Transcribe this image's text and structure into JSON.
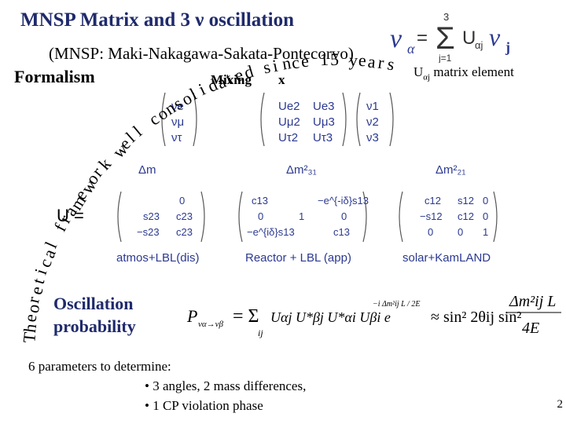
{
  "slide": {
    "title": "MNSP Matrix and 3  ν  oscillation",
    "subtitle": "(MNSP: Maki-Nakagawa-Sakata-Pontecorvo)",
    "formalism": "Formalism",
    "mixing_head": "Mixing",
    "mixing_tail": "x",
    "uaj_prefix": "U",
    "uaj_sub": "αj",
    "uaj_suffix": " matrix element",
    "eq_top": {
      "nu": "ν",
      "alpha": "α",
      "equals": "=",
      "upper": "3",
      "sum": "Σ",
      "lower": "j=1",
      "u": "U",
      "u_sub": "αj",
      "nu2": "ν",
      "j": "j"
    },
    "overlay": "Theoretical framework well consolidated since 15 years",
    "matrix_rows": [
      [
        "νe",
        "Ue2",
        "Ue3",
        "ν1"
      ],
      [
        "νμ",
        "Uμ2",
        "Uμ3",
        "ν2"
      ],
      [
        "ντ",
        "Uτ2",
        "Uτ3",
        "ν3"
      ]
    ],
    "delta_left": "Δm",
    "delta_mid": "Δm²₃₁",
    "delta_right": "Δm²₂₁",
    "u_eq": "U =",
    "m1": [
      [
        "s23",
        "c23"
      ],
      [
        "−s23",
        "c23"
      ]
    ],
    "m2": [
      [
        "c13",
        "",
        "−e^{-iδ}s13"
      ],
      [
        "0",
        "1",
        "0"
      ],
      [
        "−e^{iδ}s13",
        "",
        "c13"
      ]
    ],
    "m3": [
      [
        "c12",
        "s12",
        "0"
      ],
      [
        "−s12",
        "c12",
        "0"
      ],
      [
        "0",
        "0",
        "1"
      ]
    ],
    "m1_top": [
      "",
      "",
      "0"
    ],
    "label_left": "atmos+LBL(dis)",
    "label_mid": "Reactor + LBL (app)",
    "label_right": "solar+KamLAND",
    "osc_line1": "Oscillation",
    "osc_line2": "probability",
    "prob_lhs": "P",
    "prob_lhs_sub": "να→νβ",
    "prob_eq": "= Σ",
    "prob_ij": "ij",
    "prob_terms": "Uαj U*βj U*αi Uβi e",
    "prob_exp": "−i Δm²ij L / 2E",
    "prob_approx": "≈ sin² 2θij sin²",
    "frac_num": "Δm²ij L",
    "frac_den": "4E",
    "params_head": "6 parameters to determine:",
    "params_item1": "• 3 angles, 2 mass differences,",
    "params_item2": "• 1 CP violation phase",
    "page_num": "2"
  }
}
